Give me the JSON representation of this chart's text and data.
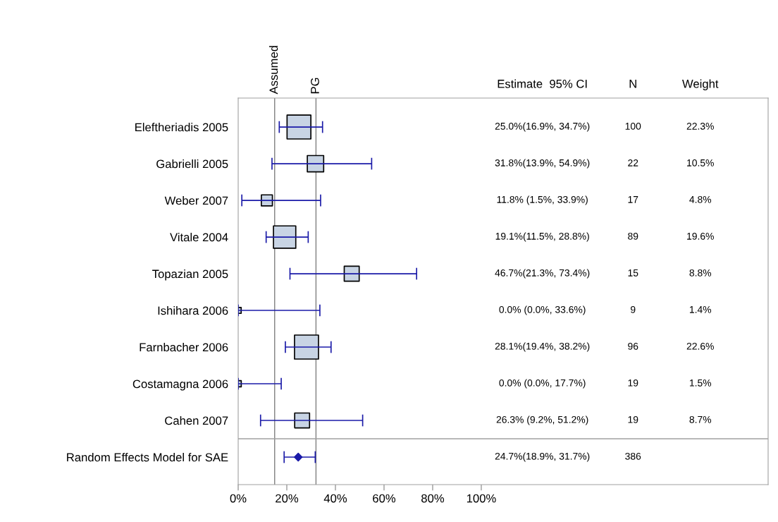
{
  "chart_data": {
    "type": "scatter",
    "orientation": "horizontal",
    "categories": [
      "Eleftheriadis 2005",
      "Gabrielli 2005",
      "Weber 2007",
      "Vitale 2004",
      "Topazian 2005",
      "Ishihara 2006",
      "Farnbacher 2006",
      "Costamagna 2006",
      "Cahen 2007",
      "Random Effects Model for SAE"
    ],
    "series": [
      {
        "type": "bubble",
        "marker": "square",
        "color": "#c8d4e4",
        "values": [
          25.0,
          31.8,
          11.8,
          19.1,
          46.7,
          0.0,
          28.1,
          0.0,
          26.3,
          null
        ],
        "errors": [
          [
            16.9,
            34.7
          ],
          [
            13.9,
            54.9
          ],
          [
            1.5,
            33.9
          ],
          [
            11.5,
            28.8
          ],
          [
            21.3,
            73.4
          ],
          [
            0.0,
            33.6
          ],
          [
            19.4,
            38.2
          ],
          [
            0.0,
            17.7
          ],
          [
            9.2,
            51.2
          ],
          null
        ],
        "sizes": [
          0.987,
          0.465,
          0.212,
          0.867,
          0.389,
          0.062,
          1,
          0.066,
          0.385,
          null
        ]
      },
      {
        "marker": "diamond",
        "color": "#1a1aa8",
        "values": [
          null,
          null,
          null,
          null,
          null,
          null,
          null,
          null,
          null,
          24.7
        ],
        "errors": [
          null,
          null,
          null,
          null,
          null,
          null,
          null,
          null,
          null,
          [
            18.9,
            31.7
          ]
        ]
      }
    ],
    "xlim": [
      0,
      218
    ],
    "xticks": [
      {
        "value": 0,
        "label": "0%"
      },
      {
        "value": 20,
        "label": "20%"
      },
      {
        "value": 40,
        "label": "40%"
      },
      {
        "value": 60,
        "label": "60%"
      },
      {
        "value": 80,
        "label": "80%"
      },
      {
        "value": 100,
        "label": "100%"
      }
    ],
    "ref_lines": [
      {
        "axis": "x",
        "value": 15,
        "label": "Assumed",
        "color": "#808080"
      },
      {
        "axis": "x",
        "value": 32,
        "label": "PG",
        "color": "#808080"
      }
    ],
    "annotations": [
      "Estimate  95% CI",
      "N",
      "Weight",
      "25.0%(16.9%, 34.7%)",
      "31.8%(13.9%, 54.9%)",
      "11.8% (1.5%, 33.9%)",
      "19.1%(11.5%, 28.8%)",
      "46.7%(21.3%, 73.4%)",
      "0.0% (0.0%, 33.6%)",
      "28.1%(19.4%, 38.2%)",
      "0.0% (0.0%, 17.7%)",
      "26.3% (9.2%, 51.2%)",
      "24.7%(18.9%, 31.7%)",
      "100",
      "22",
      "17",
      "89",
      "15",
      "9",
      "96",
      "19",
      "19",
      "386",
      "22.3%",
      "10.5%",
      "4.8%",
      "19.6%",
      "8.8%",
      "1.4%",
      "22.6%",
      "1.5%",
      "8.7%"
    ],
    "grid": false,
    "legend": false
  }
}
